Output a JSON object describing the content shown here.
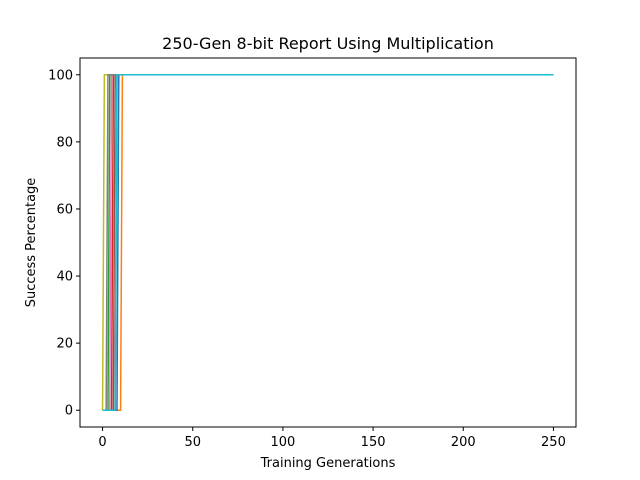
{
  "chart_data": {
    "type": "line",
    "title": "250-Gen 8-bit Report Using Multiplication",
    "xlabel": "Training Generations",
    "ylabel": "Success Percentage",
    "xlim": [
      -12.5,
      262.5
    ],
    "ylim": [
      -5,
      105
    ],
    "xticks": [
      0,
      50,
      100,
      150,
      200,
      250
    ],
    "yticks": [
      0,
      20,
      40,
      60,
      80,
      100
    ],
    "grid": false,
    "legend": "none",
    "series": [
      {
        "color": "#ff7f0e",
        "points": [
          [
            0,
            0
          ],
          [
            1,
            0
          ],
          [
            2,
            0
          ],
          [
            3,
            0
          ],
          [
            4,
            0
          ],
          [
            5,
            0
          ],
          [
            6,
            0
          ],
          [
            7,
            0
          ],
          [
            8,
            0
          ],
          [
            9,
            0
          ],
          [
            10,
            0
          ],
          [
            11,
            100
          ],
          [
            250,
            100
          ]
        ]
      },
      {
        "color": "#2ca02c",
        "points": [
          [
            0,
            0
          ],
          [
            1,
            0
          ],
          [
            2,
            0
          ],
          [
            3,
            0
          ],
          [
            4,
            100
          ],
          [
            250,
            100
          ]
        ]
      },
      {
        "color": "#d62728",
        "points": [
          [
            0,
            0
          ],
          [
            1,
            0
          ],
          [
            2,
            0
          ],
          [
            3,
            0
          ],
          [
            4,
            0
          ],
          [
            5,
            0
          ],
          [
            6,
            100
          ],
          [
            250,
            100
          ]
        ]
      },
      {
        "color": "#9467bd",
        "points": [
          [
            0,
            0
          ],
          [
            1,
            0
          ],
          [
            2,
            0
          ],
          [
            3,
            0
          ],
          [
            4,
            0
          ],
          [
            5,
            0
          ],
          [
            6,
            0
          ],
          [
            7,
            0
          ],
          [
            8,
            100
          ],
          [
            250,
            100
          ]
        ]
      },
      {
        "color": "#8c564b",
        "points": [
          [
            0,
            0
          ],
          [
            1,
            0
          ],
          [
            2,
            0
          ],
          [
            3,
            0
          ],
          [
            4,
            0
          ],
          [
            5,
            0
          ],
          [
            6,
            0
          ],
          [
            7,
            100
          ],
          [
            250,
            100
          ]
        ]
      },
      {
        "color": "#e377c2",
        "points": [
          [
            0,
            0
          ],
          [
            1,
            0
          ],
          [
            2,
            0
          ],
          [
            3,
            0
          ],
          [
            4,
            0
          ],
          [
            5,
            100
          ],
          [
            250,
            100
          ]
        ]
      },
      {
        "color": "#1f77b4",
        "points": [
          [
            0,
            0
          ],
          [
            1,
            0
          ],
          [
            2,
            0
          ],
          [
            3,
            0
          ],
          [
            4,
            0
          ],
          [
            5,
            0
          ],
          [
            6,
            0
          ],
          [
            7,
            0
          ],
          [
            8,
            0
          ],
          [
            9,
            100
          ],
          [
            250,
            100
          ]
        ]
      },
      {
        "color": "#bcbd22",
        "points": [
          [
            0,
            0
          ],
          [
            1,
            100
          ],
          [
            250,
            100
          ]
        ]
      },
      {
        "color": "#7f7f7f",
        "points": [
          [
            0,
            0
          ],
          [
            1,
            0
          ],
          [
            2,
            0
          ],
          [
            3,
            100
          ],
          [
            250,
            100
          ]
        ]
      },
      {
        "color": "#17becf",
        "points": [
          [
            0,
            0
          ],
          [
            1,
            0
          ],
          [
            2,
            0
          ],
          [
            3,
            0
          ],
          [
            4,
            0
          ],
          [
            5,
            0
          ],
          [
            6,
            0
          ],
          [
            7,
            0
          ],
          [
            8,
            100
          ],
          [
            250,
            100
          ]
        ]
      }
    ]
  }
}
